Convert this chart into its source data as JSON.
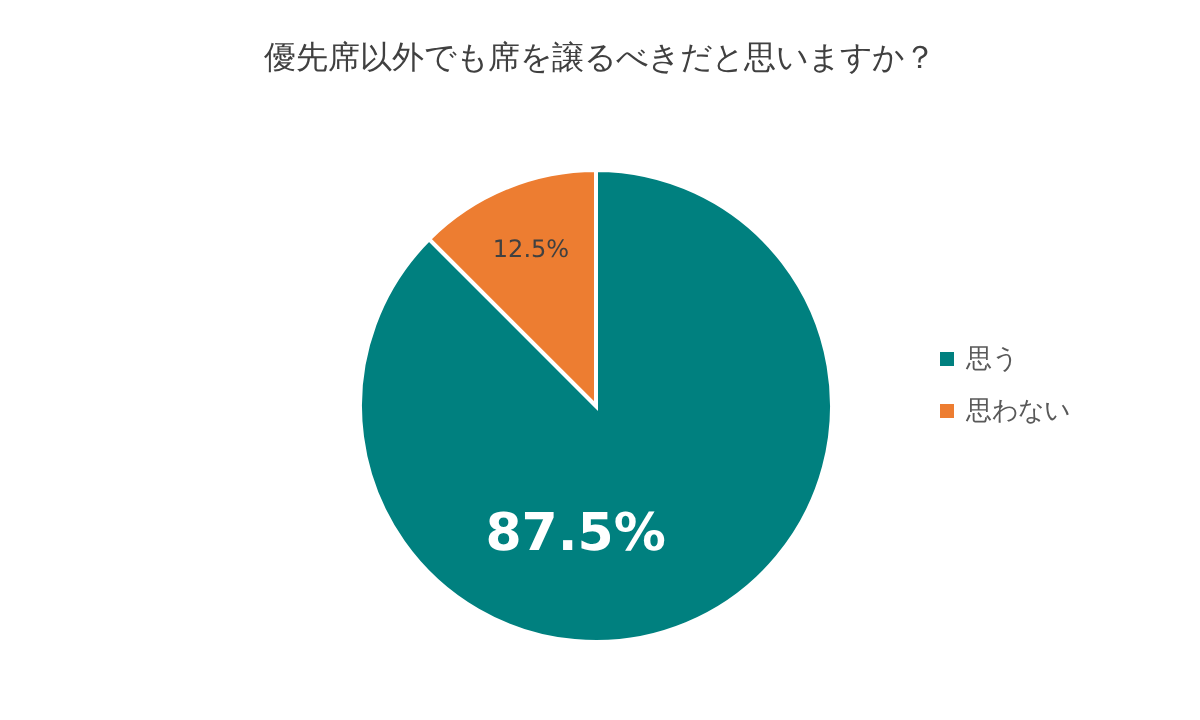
{
  "chart_data": {
    "type": "pie",
    "title": "優先席以外でも席を譲るべきだと思いますか？",
    "categories": [
      "思う",
      "思わない"
    ],
    "values": [
      87.5,
      12.5
    ],
    "colors": [
      "#00807f",
      "#ed7d31"
    ],
    "value_labels": [
      "87.5%",
      "12.5%"
    ],
    "legend": "right"
  }
}
